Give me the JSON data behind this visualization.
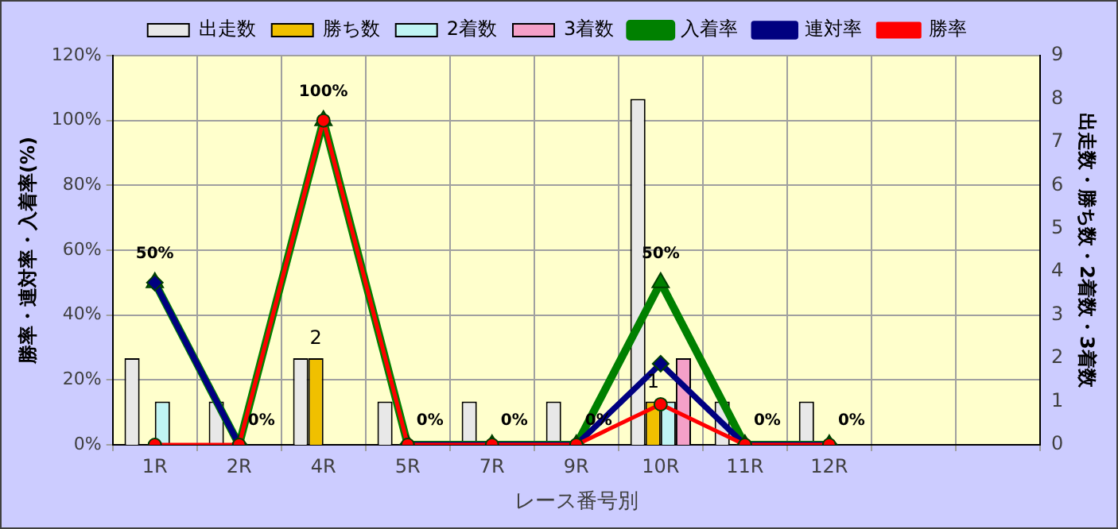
{
  "chart_data": {
    "type": "bar",
    "xlabel": "レース番号別",
    "ylabel": "勝率・連対率・入着率(%)",
    "y2label": "出走数・勝ち数・2着数・3着数",
    "categories": [
      "1R",
      "2R",
      "4R",
      "5R",
      "7R",
      "9R",
      "10R",
      "11R",
      "12R",
      null,
      null
    ],
    "series": [
      {
        "name": "出走数",
        "axis": "y2",
        "color": "#e8e8e8",
        "values": [
          2,
          1,
          2,
          1,
          1,
          1,
          8,
          1,
          1,
          null,
          null
        ]
      },
      {
        "name": "勝ち数",
        "axis": "y2",
        "color": "#f0c000",
        "values": [
          0,
          0,
          2,
          0,
          0,
          0,
          1,
          0,
          0,
          null,
          null
        ],
        "value_labels": [
          null,
          null,
          "2",
          null,
          null,
          null,
          "1",
          null,
          null,
          null,
          null
        ]
      },
      {
        "name": "2着数",
        "axis": "y2",
        "color": "#c0f4f4",
        "values": [
          1,
          0,
          0,
          0,
          0,
          0,
          1,
          0,
          0,
          null,
          null
        ]
      },
      {
        "name": "3着数",
        "axis": "y2",
        "color": "#f4a0c8",
        "values": [
          0,
          0,
          0,
          0,
          0,
          0,
          2,
          0,
          0,
          null,
          null
        ]
      },
      {
        "name": "入着率",
        "type": "line",
        "marker": "triangle",
        "color": "#008000",
        "values": [
          50,
          0,
          100,
          0,
          0,
          0,
          50,
          0,
          0,
          null,
          null
        ],
        "value_labels": [
          "50%",
          "0%",
          "100%",
          "0%",
          "0%",
          "0%",
          "50%",
          "0%",
          "0%",
          null,
          null
        ]
      },
      {
        "name": "連対率",
        "type": "line",
        "marker": "diamond",
        "color": "#000080",
        "values": [
          50,
          0,
          null,
          0,
          0,
          0,
          25,
          0,
          0,
          null,
          null
        ]
      },
      {
        "name": "勝率",
        "type": "line",
        "marker": "circle",
        "color": "#ff0000",
        "values": [
          0,
          0,
          100,
          0,
          0,
          0,
          12.5,
          0,
          0,
          null,
          null
        ]
      }
    ],
    "ylim": [
      0,
      120
    ],
    "yticks": [
      {
        "value": 0,
        "label": "0%"
      },
      {
        "value": 20,
        "label": "20%"
      },
      {
        "value": 40,
        "label": "40%"
      },
      {
        "value": 60,
        "label": "60%"
      },
      {
        "value": 80,
        "label": "80%"
      },
      {
        "value": 100,
        "label": "100%"
      },
      {
        "value": 120,
        "label": "120%"
      }
    ],
    "y2lim": [
      0,
      9
    ],
    "y2ticks": [
      0,
      1,
      2,
      3,
      4,
      5,
      6,
      7,
      8,
      9
    ],
    "grid": true,
    "legend": "top",
    "line_style": "solid"
  }
}
